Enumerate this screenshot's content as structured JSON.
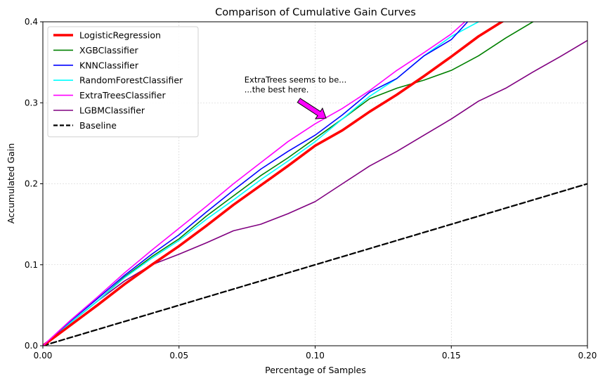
{
  "chart_data": {
    "type": "line",
    "title": "Comparison of Cumulative Gain Curves",
    "xlabel": "Percentage of Samples",
    "ylabel": "Accumulated Gain",
    "xlim": [
      0.0,
      0.2
    ],
    "ylim": [
      0.0,
      0.4
    ],
    "xticks": [
      "0.00",
      "0.05",
      "0.10",
      "0.15",
      "0.20"
    ],
    "yticks": [
      "0.0",
      "0.1",
      "0.2",
      "0.3",
      "0.4"
    ],
    "grid": true,
    "legend_position": "top-left",
    "series": [
      {
        "name": "LogisticRegression",
        "color": "#ff0000",
        "style": "solid",
        "width": "thick",
        "points": [
          [
            0.0,
            0.0
          ],
          [
            0.01,
            0.025
          ],
          [
            0.02,
            0.05
          ],
          [
            0.03,
            0.076
          ],
          [
            0.04,
            0.1
          ],
          [
            0.05,
            0.123
          ],
          [
            0.06,
            0.148
          ],
          [
            0.07,
            0.174
          ],
          [
            0.08,
            0.198
          ],
          [
            0.09,
            0.222
          ],
          [
            0.1,
            0.247
          ],
          [
            0.11,
            0.266
          ],
          [
            0.12,
            0.289
          ],
          [
            0.13,
            0.31
          ],
          [
            0.14,
            0.333
          ],
          [
            0.15,
            0.357
          ],
          [
            0.16,
            0.382
          ],
          [
            0.17,
            0.403
          ],
          [
            0.18,
            0.428
          ]
        ]
      },
      {
        "name": "XGBClassifier",
        "color": "#008000",
        "style": "solid",
        "width": "normal",
        "points": [
          [
            0.0,
            0.0
          ],
          [
            0.01,
            0.028
          ],
          [
            0.02,
            0.055
          ],
          [
            0.03,
            0.085
          ],
          [
            0.04,
            0.11
          ],
          [
            0.05,
            0.132
          ],
          [
            0.06,
            0.16
          ],
          [
            0.07,
            0.185
          ],
          [
            0.08,
            0.21
          ],
          [
            0.09,
            0.232
          ],
          [
            0.1,
            0.256
          ],
          [
            0.11,
            0.28
          ],
          [
            0.12,
            0.305
          ],
          [
            0.13,
            0.318
          ],
          [
            0.14,
            0.328
          ],
          [
            0.15,
            0.34
          ],
          [
            0.16,
            0.358
          ],
          [
            0.17,
            0.38
          ],
          [
            0.18,
            0.4
          ]
        ]
      },
      {
        "name": "KNNClassifier",
        "color": "#0000ff",
        "style": "solid",
        "width": "normal",
        "points": [
          [
            0.0,
            0.0
          ],
          [
            0.01,
            0.03
          ],
          [
            0.02,
            0.058
          ],
          [
            0.03,
            0.087
          ],
          [
            0.04,
            0.113
          ],
          [
            0.05,
            0.137
          ],
          [
            0.06,
            0.165
          ],
          [
            0.07,
            0.192
          ],
          [
            0.08,
            0.218
          ],
          [
            0.09,
            0.24
          ],
          [
            0.1,
            0.26
          ],
          [
            0.11,
            0.285
          ],
          [
            0.12,
            0.313
          ],
          [
            0.13,
            0.33
          ],
          [
            0.14,
            0.358
          ],
          [
            0.15,
            0.378
          ],
          [
            0.156,
            0.4
          ]
        ]
      },
      {
        "name": "RandomForestClassifier",
        "color": "#00ffff",
        "style": "solid",
        "width": "normal",
        "points": [
          [
            0.0,
            0.0
          ],
          [
            0.01,
            0.028
          ],
          [
            0.02,
            0.055
          ],
          [
            0.03,
            0.084
          ],
          [
            0.04,
            0.108
          ],
          [
            0.05,
            0.13
          ],
          [
            0.06,
            0.156
          ],
          [
            0.07,
            0.18
          ],
          [
            0.08,
            0.205
          ],
          [
            0.09,
            0.228
          ],
          [
            0.1,
            0.252
          ],
          [
            0.11,
            0.28
          ],
          [
            0.12,
            0.308
          ],
          [
            0.13,
            0.33
          ],
          [
            0.14,
            0.358
          ],
          [
            0.15,
            0.382
          ],
          [
            0.16,
            0.4
          ]
        ]
      },
      {
        "name": "ExtraTreesClassifier",
        "color": "#ff00ff",
        "style": "solid",
        "width": "normal",
        "points": [
          [
            0.0,
            0.0
          ],
          [
            0.01,
            0.031
          ],
          [
            0.02,
            0.06
          ],
          [
            0.03,
            0.09
          ],
          [
            0.04,
            0.118
          ],
          [
            0.05,
            0.145
          ],
          [
            0.06,
            0.172
          ],
          [
            0.07,
            0.2
          ],
          [
            0.08,
            0.226
          ],
          [
            0.09,
            0.252
          ],
          [
            0.1,
            0.274
          ],
          [
            0.11,
            0.293
          ],
          [
            0.12,
            0.315
          ],
          [
            0.13,
            0.34
          ],
          [
            0.14,
            0.362
          ],
          [
            0.15,
            0.385
          ],
          [
            0.155,
            0.4
          ]
        ]
      },
      {
        "name": "LGBMClassifier",
        "color": "#800080",
        "style": "solid",
        "width": "normal",
        "points": [
          [
            0.0,
            0.0
          ],
          [
            0.01,
            0.028
          ],
          [
            0.02,
            0.055
          ],
          [
            0.03,
            0.08
          ],
          [
            0.04,
            0.1
          ],
          [
            0.05,
            0.113
          ],
          [
            0.06,
            0.127
          ],
          [
            0.07,
            0.142
          ],
          [
            0.08,
            0.15
          ],
          [
            0.09,
            0.163
          ],
          [
            0.1,
            0.178
          ],
          [
            0.11,
            0.2
          ],
          [
            0.12,
            0.222
          ],
          [
            0.13,
            0.24
          ],
          [
            0.14,
            0.26
          ],
          [
            0.15,
            0.28
          ],
          [
            0.16,
            0.302
          ],
          [
            0.17,
            0.318
          ],
          [
            0.18,
            0.338
          ],
          [
            0.19,
            0.357
          ],
          [
            0.2,
            0.377
          ]
        ]
      },
      {
        "name": "Baseline",
        "color": "#000000",
        "style": "dashed",
        "width": "thick",
        "points": [
          [
            0.0,
            0.0
          ],
          [
            0.2,
            0.2
          ]
        ]
      }
    ],
    "annotation": {
      "lines": [
        "ExtraTrees seems to be...",
        "...the best here."
      ],
      "text_at": [
        0.074,
        0.318
      ],
      "arrow_from": [
        0.094,
        0.303
      ],
      "arrow_to": [
        0.104,
        0.281
      ],
      "arrow_color": "#ff00ff"
    }
  }
}
